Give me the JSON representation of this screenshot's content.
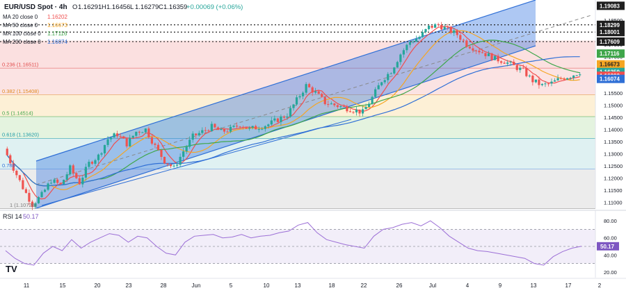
{
  "header": {
    "symbol_title": "EUR/USD Spot · 4h",
    "ohlc": {
      "open_label": "O",
      "open": "1.16291",
      "high_label": "H",
      "high": "1.16456",
      "low_label": "L",
      "low": "1.16279",
      "close_label": "C",
      "close": "1.16359",
      "change": "+0.00069 (+0.06%)"
    }
  },
  "legend": [
    {
      "label": "MA 20 close 0",
      "value": "1.16202",
      "color": "#f04e4e"
    },
    {
      "label": "MA 50 close 0",
      "value": "1.16673",
      "color": "#f5a623"
    },
    {
      "label": "MA 100 close 0",
      "value": "1.17116",
      "color": "#3fa64a"
    },
    {
      "label": "MA 200 close 0",
      "value": "1.16074",
      "color": "#2f6fd6"
    }
  ],
  "fib_labels": [
    {
      "label": "0.236 (1.16511)",
      "price": 1.16511,
      "color": "#e04848"
    },
    {
      "label": "0.382 (1.15408)",
      "price": 1.15408,
      "color": "#e08a1e"
    },
    {
      "label": "0.5 (1.14514)",
      "price": 1.14514,
      "color": "#3fa64a"
    },
    {
      "label": "0.618 (1.13620)",
      "price": 1.1362,
      "color": "#1e9aa6"
    },
    {
      "label": "0.786",
      "price": 1.12348,
      "color": "#2f6fd6"
    },
    {
      "label": "1 (1.10728)",
      "price": 1.10728,
      "color": "#7a7a7a"
    }
  ],
  "price_axis": {
    "ticks": [
      "1.18500",
      "1.18000",
      "1.17500",
      "1.17000",
      "1.16500",
      "1.16000",
      "1.15500",
      "1.15000",
      "1.14500",
      "1.14000",
      "1.13500",
      "1.13000",
      "1.12500",
      "1.12000",
      "1.11500",
      "1.11000"
    ],
    "tags": [
      {
        "text": "1.19083",
        "price": 1.19083,
        "bg": "#1f1f1f",
        "fg": "#ffffff"
      },
      {
        "text": "1.18299",
        "price": 1.18299,
        "bg": "#1f1f1f",
        "fg": "#ffffff"
      },
      {
        "text": "1.18001",
        "price": 1.18001,
        "bg": "#1f1f1f",
        "fg": "#ffffff"
      },
      {
        "text": "1.17609",
        "price": 1.17609,
        "bg": "#1f1f1f",
        "fg": "#ffffff"
      },
      {
        "text": "1.17116",
        "price": 1.17116,
        "bg": "#3fa64a",
        "fg": "#ffffff"
      },
      {
        "text": "1.16673",
        "price": 1.16673,
        "bg": "#f5a623",
        "fg": "#1f1f1f"
      },
      {
        "text": "1.16359",
        "price": 1.16359,
        "bg": "#26a69a",
        "fg": "#ffffff"
      },
      {
        "text": "1.16202",
        "price": 1.16202,
        "bg": "#f04e4e",
        "fg": "#ffffff"
      },
      {
        "text": "1.16074",
        "price": 1.16074,
        "bg": "#2f6fd6",
        "fg": "#ffffff"
      }
    ]
  },
  "rsi": {
    "label": "RSI 14",
    "value": "50.17",
    "ticks": [
      "80.00",
      "60.00",
      "40.00",
      "20.00"
    ],
    "tag": "50.17"
  },
  "time_axis": {
    "ticks": [
      "11",
      "15",
      "20",
      "23",
      "28",
      "Jun",
      "5",
      "10",
      "13",
      "18",
      "22",
      "26",
      "Jul",
      "4",
      "9",
      "13",
      "17",
      "2"
    ]
  },
  "logo": "TV",
  "colors": {
    "up": "#26a69a",
    "down": "#ef5350",
    "channel": "#2f6fd6",
    "rsi_line": "#9c6fd6"
  },
  "chart_data": {
    "type": "candlestick",
    "title": "EUR/USD Spot · 4h",
    "ylim": [
      1.105,
      1.19083
    ],
    "x_ticks": [
      "11",
      "15",
      "20",
      "23",
      "28",
      "Jun",
      "5",
      "10",
      "13",
      "18",
      "22",
      "26",
      "Jul",
      "4",
      "9",
      "13",
      "17",
      "2"
    ],
    "series": [
      {
        "name": "EUR/USD",
        "type": "candlestick",
        "last": 1.16359
      },
      {
        "name": "MA 20 close 0",
        "last": 1.16202
      },
      {
        "name": "MA 50 close 0",
        "last": 1.16673
      },
      {
        "name": "MA 100 close 0",
        "last": 1.17116
      },
      {
        "name": "MA 200 close 0",
        "last": 1.16074
      }
    ],
    "horizontal_levels": [
      1.18299,
      1.18001,
      1.17609
    ],
    "fibonacci": [
      {
        "level": 0.236,
        "price": 1.16511
      },
      {
        "level": 0.382,
        "price": 1.15408
      },
      {
        "level": 0.5,
        "price": 1.14514
      },
      {
        "level": 0.618,
        "price": 1.1362
      },
      {
        "level": 0.786,
        "price": 1.12348
      },
      {
        "level": 1,
        "price": 1.10728
      }
    ],
    "price_path": [
      1.132,
      1.124,
      1.116,
      1.109,
      1.113,
      1.119,
      1.117,
      1.124,
      1.118,
      1.126,
      1.129,
      1.136,
      1.138,
      1.134,
      1.139,
      1.14,
      1.133,
      1.127,
      1.124,
      1.131,
      1.137,
      1.139,
      1.141,
      1.139,
      1.14,
      1.142,
      1.14,
      1.141,
      1.142,
      1.144,
      1.146,
      1.152,
      1.158,
      1.155,
      1.151,
      1.15,
      1.149,
      1.148,
      1.147,
      1.153,
      1.16,
      1.164,
      1.171,
      1.176,
      1.178,
      1.182,
      1.183,
      1.181,
      1.179,
      1.175,
      1.173,
      1.171,
      1.169,
      1.168,
      1.166,
      1.164,
      1.16,
      1.158,
      1.159,
      1.161,
      1.162,
      1.1636
    ],
    "rsi": {
      "name": "RSI 14",
      "ylim": [
        20,
        80
      ],
      "last": 50.17,
      "values": [
        45,
        36,
        30,
        28,
        42,
        50,
        45,
        58,
        48,
        55,
        60,
        65,
        63,
        55,
        62,
        60,
        50,
        42,
        40,
        55,
        62,
        63,
        64,
        60,
        61,
        64,
        60,
        62,
        63,
        66,
        68,
        75,
        78,
        66,
        58,
        55,
        52,
        50,
        48,
        62,
        70,
        72,
        76,
        78,
        74,
        80,
        72,
        62,
        55,
        48,
        45,
        44,
        42,
        40,
        38,
        36,
        30,
        28,
        38,
        44,
        48,
        50.17
      ]
    }
  }
}
